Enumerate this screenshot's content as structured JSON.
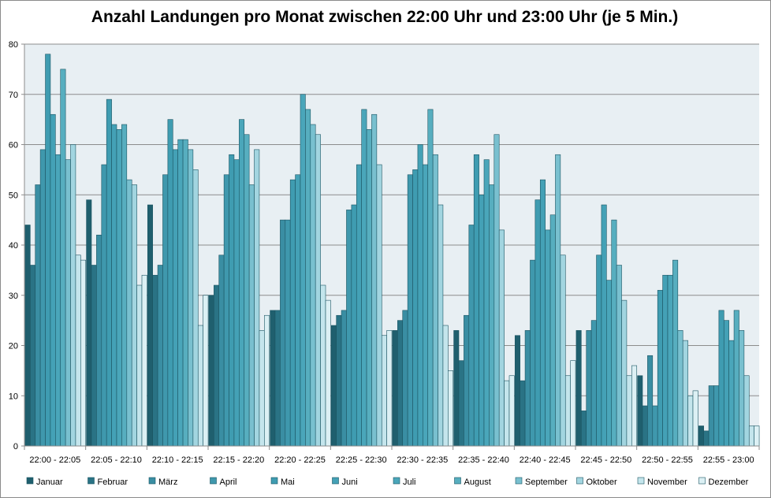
{
  "chart_data": {
    "type": "bar",
    "title": "Anzahl Landungen pro Monat zwischen 22:00 Uhr und 23:00 Uhr (je 5 Min.)",
    "xlabel": "",
    "ylabel": "",
    "ylim": [
      0,
      80
    ],
    "yticks": [
      0,
      10,
      20,
      30,
      40,
      50,
      60,
      70,
      80
    ],
    "grid": true,
    "legend": "bottom",
    "categories": [
      "22:00 - 22:05",
      "22:05 - 22:10",
      "22:10 - 22:15",
      "22:15 - 22:20",
      "22:20 - 22:25",
      "22:25 - 22:30",
      "22:30 - 22:35",
      "22:35 - 22:40",
      "22:40 - 22:45",
      "22:45 - 22:50",
      "22:50 - 22:55",
      "22:55 - 23:00"
    ],
    "series": [
      {
        "name": "Januar",
        "color": "#1f5f6e",
        "values": [
          44,
          49,
          48,
          30,
          27,
          24,
          23,
          23,
          22,
          23,
          14,
          4
        ]
      },
      {
        "name": "Februar",
        "color": "#2a7385",
        "values": [
          36,
          36,
          34,
          32,
          27,
          26,
          25,
          17,
          13,
          7,
          8,
          3
        ]
      },
      {
        "name": "März",
        "color": "#3a8ea3",
        "values": [
          52,
          42,
          36,
          38,
          45,
          27,
          27,
          26,
          23,
          23,
          18,
          12
        ]
      },
      {
        "name": "April",
        "color": "#3f98ad",
        "values": [
          59,
          56,
          54,
          54,
          45,
          47,
          54,
          44,
          37,
          25,
          8,
          12
        ]
      },
      {
        "name": "Mai",
        "color": "#3f9cb1",
        "values": [
          78,
          69,
          65,
          58,
          53,
          48,
          55,
          58,
          49,
          38,
          31,
          27
        ]
      },
      {
        "name": "Juni",
        "color": "#44a1b6",
        "values": [
          66,
          64,
          59,
          57,
          54,
          56,
          60,
          50,
          53,
          48,
          34,
          25
        ]
      },
      {
        "name": "Juli",
        "color": "#4aa6ba",
        "values": [
          58,
          63,
          61,
          65,
          70,
          67,
          56,
          57,
          43,
          33,
          34,
          21
        ]
      },
      {
        "name": "August",
        "color": "#57aebf",
        "values": [
          75,
          64,
          61,
          62,
          67,
          63,
          67,
          52,
          46,
          45,
          37,
          27
        ]
      },
      {
        "name": "September",
        "color": "#79c0cf",
        "values": [
          57,
          53,
          59,
          52,
          64,
          66,
          58,
          62,
          58,
          36,
          23,
          23
        ]
      },
      {
        "name": "Oktober",
        "color": "#a2d5e0",
        "values": [
          60,
          52,
          55,
          59,
          62,
          56,
          48,
          43,
          38,
          29,
          21,
          14
        ]
      },
      {
        "name": "November",
        "color": "#c4e5ec",
        "values": [
          38,
          32,
          24,
          23,
          32,
          22,
          24,
          13,
          14,
          14,
          10,
          4
        ]
      },
      {
        "name": "Dezember",
        "color": "#dcf0f4",
        "values": [
          37,
          34,
          30,
          26,
          29,
          23,
          15,
          14,
          17,
          16,
          11,
          4
        ]
      }
    ]
  }
}
